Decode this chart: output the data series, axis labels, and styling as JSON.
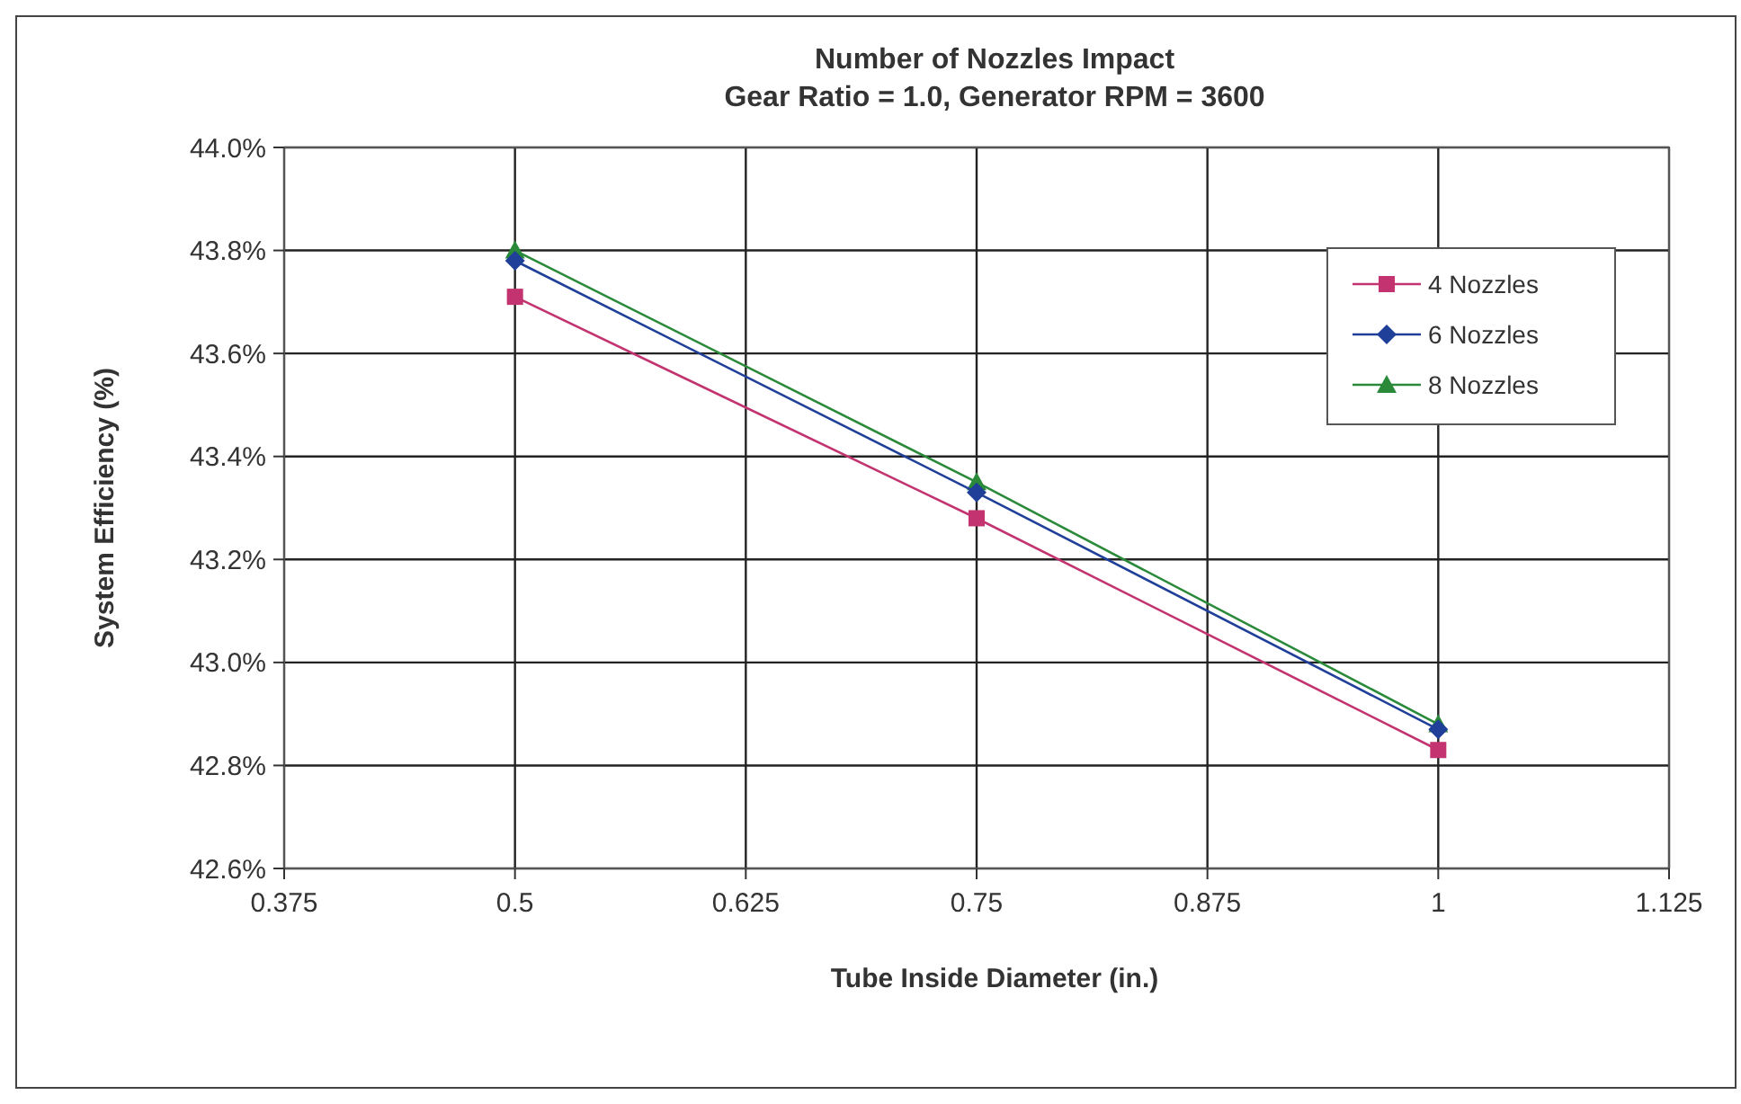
{
  "chart_data": {
    "type": "line",
    "title": "Number of Nozzles Impact",
    "subtitle": "Gear Ratio = 1.0, Generator RPM = 3600",
    "xlabel": "Tube Inside Diameter (in.)",
    "ylabel": "System Efficiency (%)",
    "x": [
      0.5,
      0.75,
      1
    ],
    "series": [
      {
        "name": "4 Nozzles",
        "color": "#c2336f",
        "marker": "square",
        "values": [
          43.71,
          43.28,
          42.83
        ]
      },
      {
        "name": "6 Nozzles",
        "color": "#1f3f99",
        "marker": "diamond",
        "values": [
          43.78,
          43.33,
          42.87
        ]
      },
      {
        "name": "8 Nozzles",
        "color": "#2a8a3a",
        "marker": "triangle",
        "values": [
          43.8,
          43.35,
          42.88
        ]
      }
    ],
    "xlim": [
      0.375,
      1.125
    ],
    "xticks": [
      0.375,
      0.5,
      0.625,
      0.75,
      0.875,
      1,
      1.125
    ],
    "ylim": [
      42.6,
      44.0
    ],
    "yticks": [
      {
        "value": 42.6,
        "label": "42.6%"
      },
      {
        "value": 42.8,
        "label": "42.8%"
      },
      {
        "value": 43.0,
        "label": "43.0%"
      },
      {
        "value": 43.2,
        "label": "43.2%"
      },
      {
        "value": 43.4,
        "label": "43.4%"
      },
      {
        "value": 43.6,
        "label": "43.6%"
      },
      {
        "value": 43.8,
        "label": "43.8%"
      },
      {
        "value": 44.0,
        "label": "44.0%"
      }
    ],
    "grid": true,
    "legend": "top right",
    "line_style": "solid"
  }
}
